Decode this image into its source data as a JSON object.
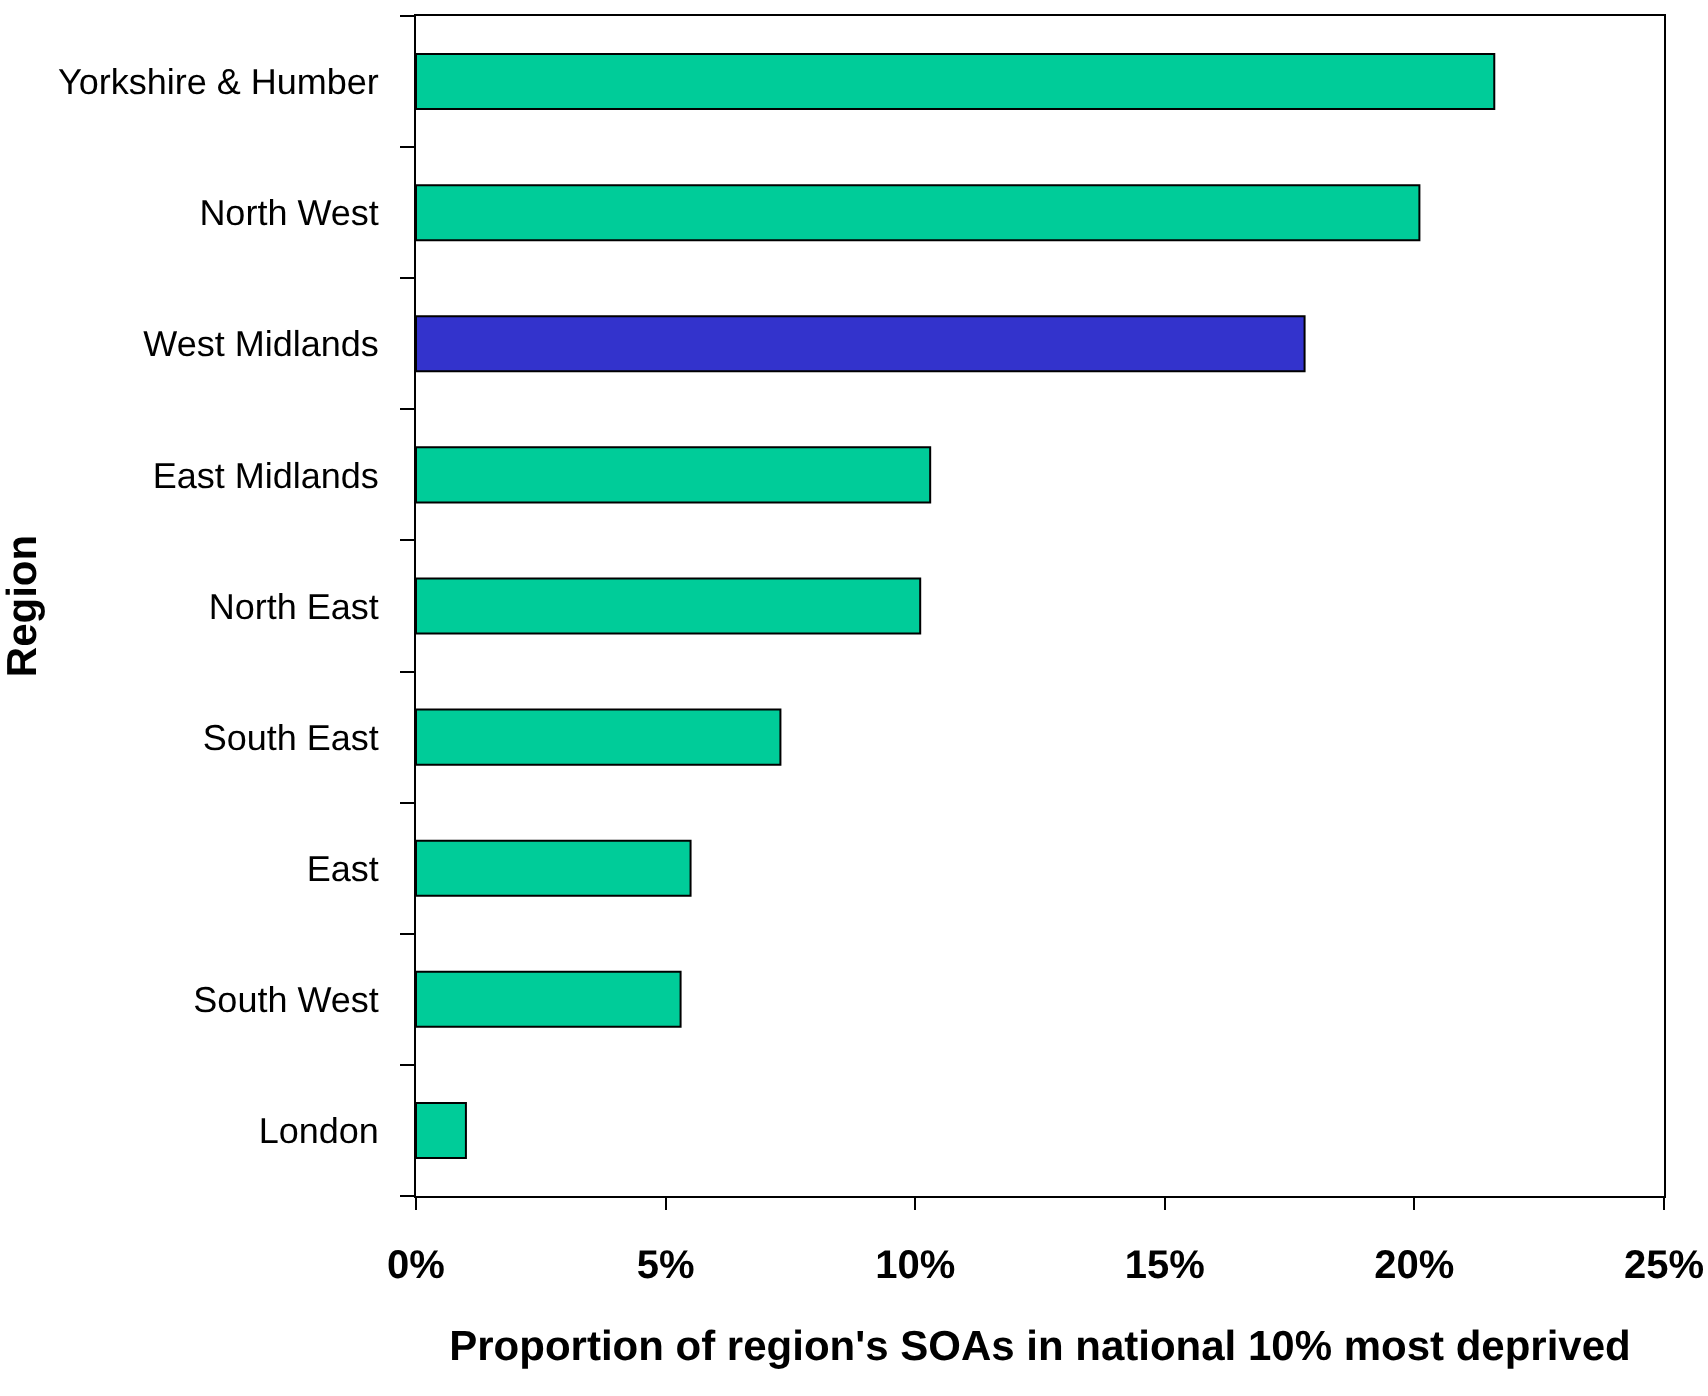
{
  "chart_data": {
    "type": "bar",
    "orientation": "horizontal",
    "categories": [
      "Yorkshire & Humber",
      "North West",
      "West Midlands",
      "East Midlands",
      "North East",
      "South East",
      "East",
      "South West",
      "London"
    ],
    "values": [
      21.6,
      20.1,
      17.8,
      10.3,
      10.1,
      7.3,
      5.5,
      5.3,
      1.0
    ],
    "colors": [
      "#00cc99",
      "#00cc99",
      "#3333cc",
      "#00cc99",
      "#00cc99",
      "#00cc99",
      "#00cc99",
      "#00cc99",
      "#00cc99"
    ],
    "xlabel": "Proportion of region's SOAs in national 10% most deprived",
    "ylabel": "Region",
    "xlim": [
      0,
      25
    ],
    "xticks": [
      {
        "value": 0,
        "label": "0%"
      },
      {
        "value": 5,
        "label": "5%"
      },
      {
        "value": 10,
        "label": "10%"
      },
      {
        "value": 15,
        "label": "15%"
      },
      {
        "value": 20,
        "label": "20%"
      },
      {
        "value": 25,
        "label": "25%"
      }
    ]
  }
}
